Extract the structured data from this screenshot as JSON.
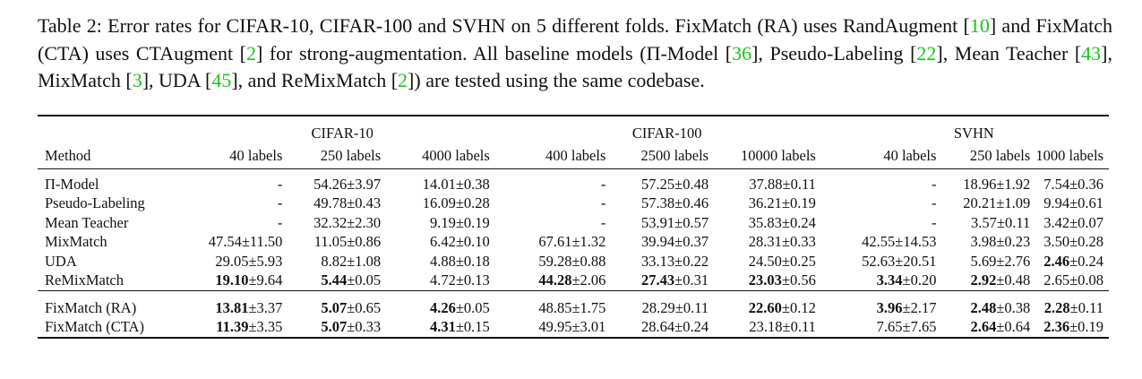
{
  "caption": {
    "p1": "Table 2: Error rates for CIFAR-10, CIFAR-100 and SVHN on 5 different folds. FixMatch (RA) uses RandAugment [",
    "c1": "10",
    "p2": "] and FixMatch (CTA) uses CTAugment [",
    "c2": "2",
    "p3": "] for strong-augmentation. All baseline models (Π-Model [",
    "c3": "36",
    "p4": "], Pseudo-Labeling [",
    "c4": "22",
    "p5": "], Mean Teacher [",
    "c5": "43",
    "p6": "], MixMatch [",
    "c6": "3",
    "p7": "], UDA [",
    "c7": "45",
    "p8": "], and ReMixMatch [",
    "c8": "2",
    "p9": "]) are tested using the same codebase."
  },
  "groups": [
    "CIFAR-10",
    "CIFAR-100",
    "SVHN"
  ],
  "method_header": "Method",
  "columns": [
    "40 labels",
    "250 labels",
    "4000 labels",
    "400 labels",
    "2500 labels",
    "10000 labels",
    "40 labels",
    "250 labels",
    "1000 labels"
  ],
  "rows": [
    {
      "method": "Π-Model",
      "cells": [
        {
          "v": "-",
          "s": "",
          "bold": false
        },
        {
          "v": "54.26",
          "s": "±3.97",
          "bold": false
        },
        {
          "v": "14.01",
          "s": "±0.38",
          "bold": false
        },
        {
          "v": "-",
          "s": "",
          "bold": false
        },
        {
          "v": "57.25",
          "s": "±0.48",
          "bold": false
        },
        {
          "v": "37.88",
          "s": "±0.11",
          "bold": false
        },
        {
          "v": "-",
          "s": "",
          "bold": false
        },
        {
          "v": "18.96",
          "s": "±1.92",
          "bold": false
        },
        {
          "v": "7.54",
          "s": "±0.36",
          "bold": false
        }
      ]
    },
    {
      "method": "Pseudo-Labeling",
      "cells": [
        {
          "v": "-",
          "s": "",
          "bold": false
        },
        {
          "v": "49.78",
          "s": "±0.43",
          "bold": false
        },
        {
          "v": "16.09",
          "s": "±0.28",
          "bold": false
        },
        {
          "v": "-",
          "s": "",
          "bold": false
        },
        {
          "v": "57.38",
          "s": "±0.46",
          "bold": false
        },
        {
          "v": "36.21",
          "s": "±0.19",
          "bold": false
        },
        {
          "v": "-",
          "s": "",
          "bold": false
        },
        {
          "v": "20.21",
          "s": "±1.09",
          "bold": false
        },
        {
          "v": "9.94",
          "s": "±0.61",
          "bold": false
        }
      ]
    },
    {
      "method": "Mean Teacher",
      "cells": [
        {
          "v": "-",
          "s": "",
          "bold": false
        },
        {
          "v": "32.32",
          "s": "±2.30",
          "bold": false
        },
        {
          "v": "9.19",
          "s": "±0.19",
          "bold": false
        },
        {
          "v": "-",
          "s": "",
          "bold": false
        },
        {
          "v": "53.91",
          "s": "±0.57",
          "bold": false
        },
        {
          "v": "35.83",
          "s": "±0.24",
          "bold": false
        },
        {
          "v": "-",
          "s": "",
          "bold": false
        },
        {
          "v": "3.57",
          "s": "±0.11",
          "bold": false
        },
        {
          "v": "3.42",
          "s": "±0.07",
          "bold": false
        }
      ]
    },
    {
      "method": "MixMatch",
      "cells": [
        {
          "v": "47.54",
          "s": "±11.50",
          "bold": false
        },
        {
          "v": "11.05",
          "s": "±0.86",
          "bold": false
        },
        {
          "v": "6.42",
          "s": "±0.10",
          "bold": false
        },
        {
          "v": "67.61",
          "s": "±1.32",
          "bold": false
        },
        {
          "v": "39.94",
          "s": "±0.37",
          "bold": false
        },
        {
          "v": "28.31",
          "s": "±0.33",
          "bold": false
        },
        {
          "v": "42.55",
          "s": "±14.53",
          "bold": false
        },
        {
          "v": "3.98",
          "s": "±0.23",
          "bold": false
        },
        {
          "v": "3.50",
          "s": "±0.28",
          "bold": false
        }
      ]
    },
    {
      "method": "UDA",
      "cells": [
        {
          "v": "29.05",
          "s": "±5.93",
          "bold": false
        },
        {
          "v": "8.82",
          "s": "±1.08",
          "bold": false
        },
        {
          "v": "4.88",
          "s": "±0.18",
          "bold": false
        },
        {
          "v": "59.28",
          "s": "±0.88",
          "bold": false
        },
        {
          "v": "33.13",
          "s": "±0.22",
          "bold": false
        },
        {
          "v": "24.50",
          "s": "±0.25",
          "bold": false
        },
        {
          "v": "52.63",
          "s": "±20.51",
          "bold": false
        },
        {
          "v": "5.69",
          "s": "±2.76",
          "bold": false
        },
        {
          "v": "2.46",
          "s": "±0.24",
          "bold": true
        }
      ]
    },
    {
      "method": "ReMixMatch",
      "cells": [
        {
          "v": "19.10",
          "s": "±9.64",
          "bold": true
        },
        {
          "v": "5.44",
          "s": "±0.05",
          "bold": true
        },
        {
          "v": "4.72",
          "s": "±0.13",
          "bold": false
        },
        {
          "v": "44.28",
          "s": "±2.06",
          "bold": true
        },
        {
          "v": "27.43",
          "s": "±0.31",
          "bold": true
        },
        {
          "v": "23.03",
          "s": "±0.56",
          "bold": true
        },
        {
          "v": "3.34",
          "s": "±0.20",
          "bold": true
        },
        {
          "v": "2.92",
          "s": "±0.48",
          "bold": true
        },
        {
          "v": "2.65",
          "s": "±0.08",
          "bold": false
        }
      ]
    }
  ],
  "fix_rows": [
    {
      "method": "FixMatch (RA)",
      "cells": [
        {
          "v": "13.81",
          "s": "±3.37",
          "bold": true
        },
        {
          "v": "5.07",
          "s": "±0.65",
          "bold": true
        },
        {
          "v": "4.26",
          "s": "±0.05",
          "bold": true
        },
        {
          "v": "48.85",
          "s": "±1.75",
          "bold": false
        },
        {
          "v": "28.29",
          "s": "±0.11",
          "bold": false
        },
        {
          "v": "22.60",
          "s": "±0.12",
          "bold": true
        },
        {
          "v": "3.96",
          "s": "±2.17",
          "bold": true
        },
        {
          "v": "2.48",
          "s": "±0.38",
          "bold": true
        },
        {
          "v": "2.28",
          "s": "±0.11",
          "bold": true
        }
      ]
    },
    {
      "method": "FixMatch (CTA)",
      "cells": [
        {
          "v": "11.39",
          "s": "±3.35",
          "bold": true
        },
        {
          "v": "5.07",
          "s": "±0.33",
          "bold": true
        },
        {
          "v": "4.31",
          "s": "±0.15",
          "bold": true
        },
        {
          "v": "49.95",
          "s": "±3.01",
          "bold": false
        },
        {
          "v": "28.64",
          "s": "±0.24",
          "bold": false
        },
        {
          "v": "23.18",
          "s": "±0.11",
          "bold": false
        },
        {
          "v": "7.65",
          "s": "±7.65",
          "bold": false
        },
        {
          "v": "2.64",
          "s": "±0.64",
          "bold": true
        },
        {
          "v": "2.36",
          "s": "±0.19",
          "bold": true
        }
      ]
    }
  ]
}
